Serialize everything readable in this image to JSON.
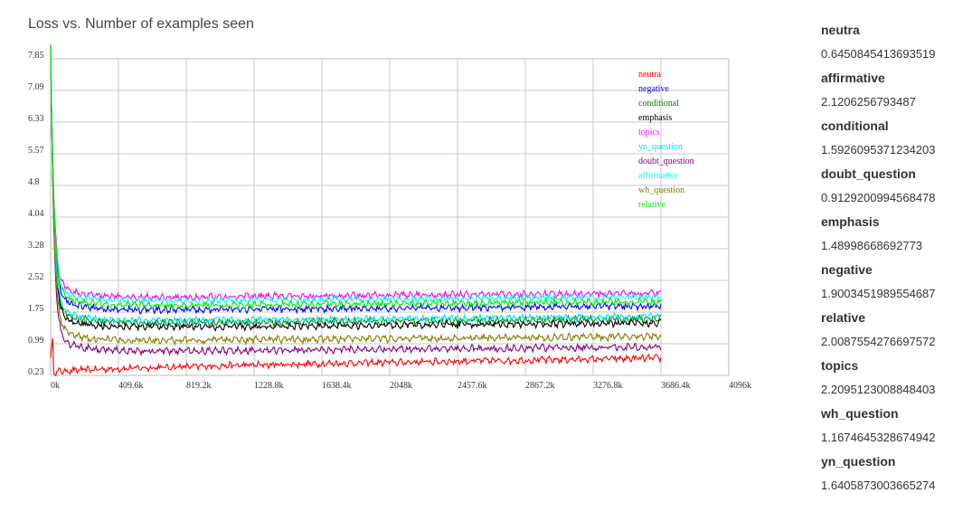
{
  "chart_data": {
    "type": "line",
    "title": "Loss vs. Number of examples seen",
    "x_ticks": [
      "0k",
      "409.6k",
      "819.2k",
      "1228.8k",
      "1638.4k",
      "2048k",
      "2457.6k",
      "2867.2k",
      "3276.8k",
      "3686.4k",
      "4096k"
    ],
    "y_ticks": [
      "7.85",
      "7.09",
      "6.33",
      "5.57",
      "4.8",
      "4.04",
      "3.28",
      "2.52",
      "1.75",
      "0.99",
      "0.23"
    ],
    "xlim": [
      0,
      4096000
    ],
    "ylim": [
      0.23,
      7.85
    ],
    "grid": true,
    "legend_position": "top-right",
    "series": [
      {
        "name": "neutra",
        "color": "#ff0000",
        "start": 0.4,
        "final": 0.6450845413693519
      },
      {
        "name": "negative",
        "color": "#0000ff",
        "start": 7.8,
        "final": 1.9003451989554687
      },
      {
        "name": "conditional",
        "color": "#008000",
        "start": 7.8,
        "final": 1.5926095371234203
      },
      {
        "name": "emphasis",
        "color": "#000000",
        "start": 7.8,
        "final": 1.48998668692773
      },
      {
        "name": "topics",
        "color": "#ff00ff",
        "start": 7.8,
        "final": 2.2095123008848403
      },
      {
        "name": "yn_question",
        "color": "#00e5e5",
        "start": 7.8,
        "final": 1.6405873003665274
      },
      {
        "name": "doubt_question",
        "color": "#800080",
        "start": 7.8,
        "final": 0.9129200994568478
      },
      {
        "name": "affirmative",
        "color": "#00ffff",
        "start": 7.8,
        "final": 2.1206256793487
      },
      {
        "name": "wh_question",
        "color": "#808000",
        "start": 7.8,
        "final": 1.1674645328674942
      },
      {
        "name": "relative",
        "color": "#00ee00",
        "start": 7.8,
        "final": 2.0087554276697572
      }
    ]
  },
  "panel": [
    {
      "name": "neutra",
      "value": "0.6450845413693519"
    },
    {
      "name": "affirmative",
      "value": "2.1206256793487"
    },
    {
      "name": "conditional",
      "value": "1.5926095371234203"
    },
    {
      "name": "doubt_question",
      "value": "0.9129200994568478"
    },
    {
      "name": "emphasis",
      "value": "1.48998668692773"
    },
    {
      "name": "negative",
      "value": "1.9003451989554687"
    },
    {
      "name": "relative",
      "value": "2.0087554276697572"
    },
    {
      "name": "topics",
      "value": "2.2095123008848403"
    },
    {
      "name": "wh_question",
      "value": "1.1674645328674942"
    },
    {
      "name": "yn_question",
      "value": "1.6405873003665274"
    }
  ]
}
